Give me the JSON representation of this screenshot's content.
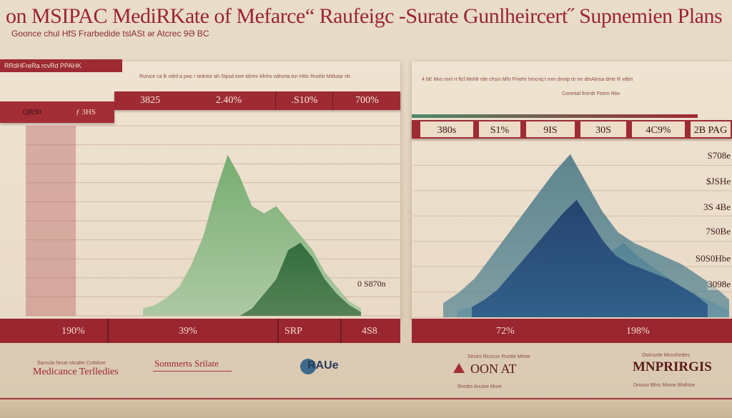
{
  "page": {
    "title": "on MSIPAC MediRKate of Mefarce“ Raufeigc -Surate Gunlheircert˝ Supnemien Plans",
    "subtitle": "Goonce chul HfS Frarbedide tslASt ər Atcrec 9Ə BC",
    "top_band": "RRdHFreRa rcvRd PPAHK"
  },
  "chart_data": [
    {
      "type": "area",
      "title": "",
      "header_labels": [
        "3825",
        "2.40%",
        ".S10%",
        "700%"
      ],
      "left_tab_labels": [
        "QR90",
        "ƒ 3HS"
      ],
      "bottom_labels": [
        "190%",
        "39%",
        "SRP",
        "4S8"
      ],
      "annotation": "0 S870n",
      "series": [
        {
          "values": [
            2,
            3,
            5,
            8,
            14,
            22,
            34,
            44,
            38,
            30,
            28,
            30,
            26,
            22,
            18,
            12,
            8,
            4,
            2
          ]
        },
        {
          "values": [
            0,
            0,
            0,
            0,
            0,
            0,
            0,
            0,
            0,
            2,
            6,
            10,
            18,
            20,
            16,
            10,
            6,
            3,
            1
          ]
        }
      ],
      "y_ticks": [
        "",
        "",
        "",
        "",
        "",
        "",
        "",
        "",
        "",
        "",
        ""
      ],
      "colors": {
        "light_green": "#6aa868",
        "dark_green": "#2f6a3a"
      }
    },
    {
      "type": "area",
      "title": "",
      "header_labels": [
        "380s",
        "S1%",
        "9IS",
        "30S",
        "4C9%",
        "2B PAG"
      ],
      "right_labels": [
        "S708e",
        "$JSHe",
        "3S 4Be",
        "7S0Be",
        "S0S0Hbe",
        "3098e"
      ],
      "bottom_labels": [
        "72%",
        "198%"
      ],
      "series": [
        {
          "values": [
            8,
            14,
            22,
            34,
            46,
            58,
            70,
            82,
            92,
            76,
            60,
            48,
            42,
            38,
            34,
            30,
            24,
            18,
            10
          ]
        },
        {
          "values": [
            4,
            6,
            10,
            16,
            22,
            28,
            36,
            40,
            38,
            34,
            36,
            42,
            34,
            28,
            22,
            16,
            12,
            8,
            4
          ]
        }
      ],
      "colors": {
        "teal": "#3a6a78",
        "navy": "#1e3a66",
        "blue": "#4f8ab0"
      }
    }
  ],
  "notes": {
    "left_header_note": "Rurvce ca lk vdrd a pwc r tedntor ah Stpsd wve tdmnr Afnhs vahsrta tcn Hitic Rnohir Mdlutar nh",
    "right_header_note": "4 bE Mvs rmrl rt ftcl Mnhfr rde chsm Mhr Fmehr hmcnq t rnm dnvtp rtr tnr dtnAtnsa dmtr R vdtm",
    "right_sub_note": "Conmtal fmrrdr Ftorm Rtw"
  },
  "footer": {
    "logo1_small": "Saroula Nnue rAcaler Cnttdore",
    "logo1": "Medicance Terlledies",
    "logo2": "Sommerts Srilate",
    "logo3": "RAUe",
    "logo4_small": "Seoirs Rrcicun Runtte Meoe",
    "logo4": "OON AT",
    "logo4_sub": "Rnrdm Anulve Mure",
    "logo5_small": "Ooirsurte Mnoshedes",
    "logo5": "MNPRIRGIS",
    "logo5_sub": "Droosv Bhrs Mnme Bhdrtce"
  }
}
